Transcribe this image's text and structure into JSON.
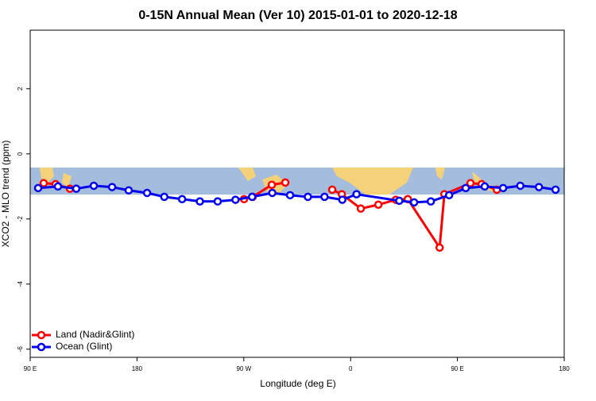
{
  "chart_data": {
    "type": "line",
    "title": "0-15N Annual Mean (Ver 10)   2015-01-01 to 2020-12-18",
    "xlabel": "Longitude (deg E)",
    "ylabel": "XCO2 - MLO trend (ppm)",
    "xlim": [
      90,
      540
    ],
    "xticks": [
      {
        "value": 90,
        "label": "90 E"
      },
      180,
      {
        "value": 270,
        "label": "90 W"
      },
      {
        "value": 360,
        "label": "0"
      },
      {
        "value": 450,
        "label": "90 E"
      },
      {
        "value": 540,
        "label": "180"
      }
    ],
    "ylim": [
      -6.25,
      3.8
    ],
    "yticks": [
      -6,
      -4,
      -2,
      0,
      2
    ],
    "legend": "bottom-left",
    "series": [
      {
        "name": "Land (Nadir&Glint)",
        "color": "#ff0000",
        "x": [
          101.4,
          111.4,
          123.5,
          null,
          270.2,
          277.5,
          293.6,
          305,
          null,
          344.5,
          352.6,
          368.6,
          383.4,
          398.1,
          408.2,
          435,
          439,
          461,
          470.4,
          483.2
        ],
        "values": [
          -0.9,
          -0.93,
          -1.07,
          null,
          -1.39,
          -1.32,
          -0.95,
          -0.88,
          null,
          -1.1,
          -1.24,
          -1.68,
          -1.56,
          -1.41,
          -1.39,
          -2.88,
          -1.24,
          -0.9,
          -0.93,
          -1.1
        ]
      },
      {
        "name": "Ocean (Glint)",
        "color": "#0000ee",
        "x": [
          96.7,
          113.4,
          128.8,
          143.6,
          159,
          173,
          188.5,
          203,
          218,
          233,
          248,
          263,
          277,
          294,
          309,
          324,
          338,
          353,
          365,
          401,
          413.5,
          427.6,
          443,
          457,
          473,
          488.5,
          503,
          518.7,
          532.7
        ],
        "values": [
          -1.05,
          -1.0,
          -1.07,
          -0.98,
          -1.02,
          -1.12,
          -1.2,
          -1.32,
          -1.39,
          -1.46,
          -1.46,
          -1.41,
          -1.32,
          -1.2,
          -1.27,
          -1.32,
          -1.32,
          -1.41,
          -1.24,
          -1.44,
          -1.49,
          -1.46,
          -1.27,
          -1.05,
          -1.0,
          -1.05,
          -0.98,
          -1.02,
          -1.1
        ]
      }
    ]
  }
}
